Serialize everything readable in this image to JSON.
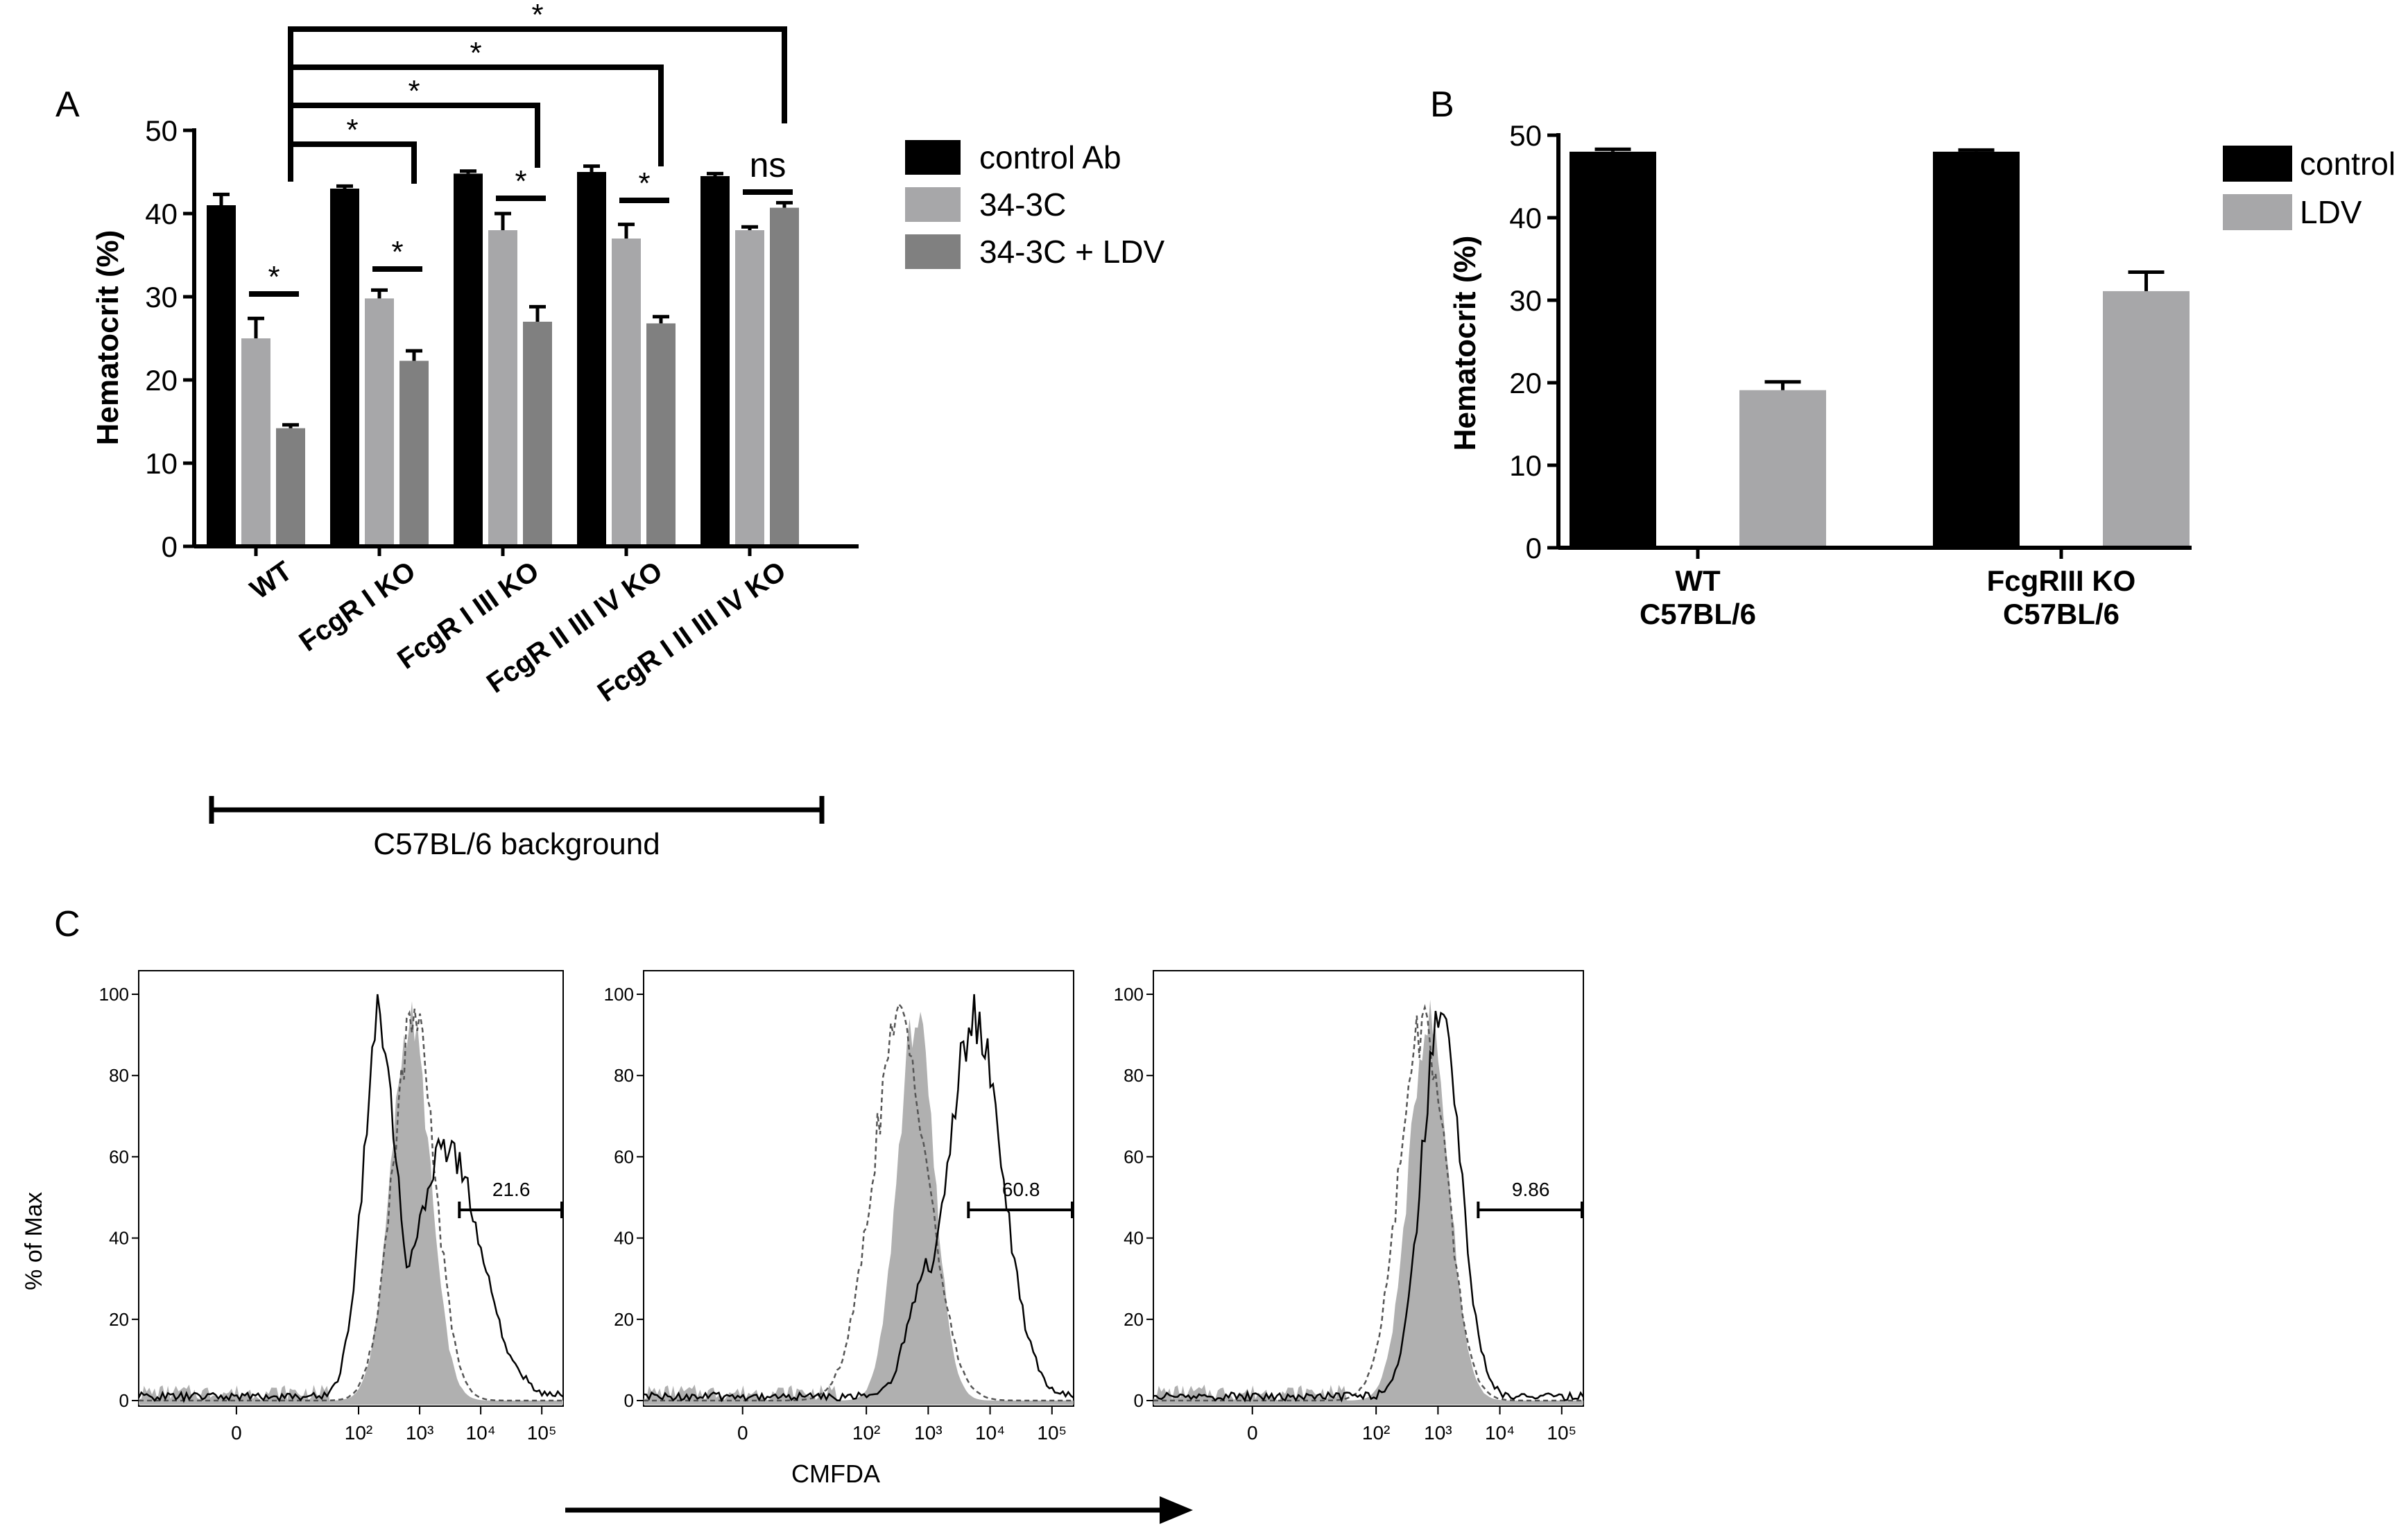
{
  "panels": {
    "a": "A",
    "b": "B",
    "c": "C"
  },
  "colors": {
    "black": "#000000",
    "light_gray": "#a7a7a9",
    "dark_gray": "#808080",
    "hist_fill": "#b0b0b0"
  },
  "chart_data": [
    {
      "id": "A",
      "type": "bar",
      "ylabel": "Hematocrit (%)",
      "ylim": [
        0,
        50
      ],
      "yticks": [
        "0",
        "10",
        "20",
        "30",
        "40",
        "50"
      ],
      "categories": [
        "WT",
        "FcgR I KO",
        "FcgR I III KO",
        "FcgR II III IV KO",
        "FcgR I II III IV KO"
      ],
      "series": [
        {
          "name": "control Ab",
          "color": "#000000",
          "values": [
            41,
            43,
            44.8,
            45,
            44.5
          ],
          "errors": [
            1.3,
            0.3,
            0.3,
            0.7,
            0.3
          ]
        },
        {
          "name": "34-3C",
          "color": "#a7a7a9",
          "values": [
            25,
            29.8,
            38,
            37,
            38
          ],
          "errors": [
            2.4,
            1.0,
            2.0,
            1.7,
            0.4
          ]
        },
        {
          "name": "34-3C + LDV",
          "color": "#808080",
          "values": [
            14.2,
            22.3,
            27,
            26.8,
            40.7
          ],
          "errors": [
            0.4,
            1.2,
            1.8,
            0.8,
            0.6
          ]
        }
      ],
      "significance": [
        {
          "groups": [
            0,
            0
          ],
          "label": "*"
        },
        {
          "groups": [
            1,
            1
          ],
          "label": "*"
        },
        {
          "groups": [
            2,
            2
          ],
          "label": "*"
        },
        {
          "groups": [
            3,
            3
          ],
          "label": "*"
        },
        {
          "groups": [
            4,
            4
          ],
          "label": "ns"
        },
        {
          "groups": [
            0,
            1
          ],
          "label": "*"
        },
        {
          "groups": [
            0,
            2
          ],
          "label": "*"
        },
        {
          "groups": [
            0,
            3
          ],
          "label": "*"
        },
        {
          "groups": [
            0,
            4
          ],
          "label": "*"
        }
      ],
      "background_label": "C57BL/6 background"
    },
    {
      "id": "B",
      "type": "bar",
      "ylabel": "Hematocrit (%)",
      "ylim": [
        0,
        50
      ],
      "yticks": [
        "0",
        "10",
        "20",
        "30",
        "40",
        "50"
      ],
      "categories": [
        [
          "WT",
          "C57BL/6"
        ],
        [
          "FcgRIII KO",
          "C57BL/6"
        ]
      ],
      "series": [
        {
          "name": "control",
          "color": "#000000",
          "values": [
            48,
            48
          ],
          "errors": [
            0.3,
            0.2
          ]
        },
        {
          "name": "LDV",
          "color": "#a7a7a9",
          "values": [
            19.1,
            31.1
          ],
          "errors": [
            1.0,
            2.3
          ]
        }
      ]
    },
    {
      "id": "C",
      "type": "histogram",
      "ylabel": "% of Max",
      "xlabel": "CMFDA",
      "yticks": [
        "0",
        "20",
        "40",
        "60",
        "80",
        "100"
      ],
      "xticks": [
        "0",
        "10²",
        "10³",
        "10⁴",
        "10⁵"
      ],
      "xtick_positions": [
        0,
        2,
        3,
        4,
        5
      ],
      "xlim": [
        -1.6,
        5.35
      ],
      "gate_start": 3.65,
      "plots": [
        {
          "gate_value": "21.6",
          "filled": {
            "mu": 2.85,
            "sigma": 0.32
          },
          "dashed": {
            "mu": 2.9,
            "sigma": 0.35
          },
          "solid_peaks": [
            {
              "mu": 2.35,
              "sigma": 0.28,
              "h": 1.0
            },
            {
              "mu": 3.45,
              "sigma": 0.55,
              "h": 0.66
            }
          ]
        },
        {
          "gate_value": "60.8",
          "filled": {
            "mu": 2.8,
            "sigma": 0.3
          },
          "dashed": {
            "mu": 2.55,
            "sigma": 0.45
          },
          "solid_peaks": [
            {
              "mu": 3.75,
              "sigma": 0.45,
              "h": 1.0
            },
            {
              "mu": 3.0,
              "sigma": 0.3,
              "h": 0.35
            }
          ]
        },
        {
          "gate_value": "9.86",
          "filled": {
            "mu": 2.85,
            "sigma": 0.32
          },
          "dashed": {
            "mu": 2.75,
            "sigma": 0.38
          },
          "solid_peaks": [
            {
              "mu": 3.05,
              "sigma": 0.32,
              "h": 1.0
            }
          ]
        }
      ]
    }
  ]
}
